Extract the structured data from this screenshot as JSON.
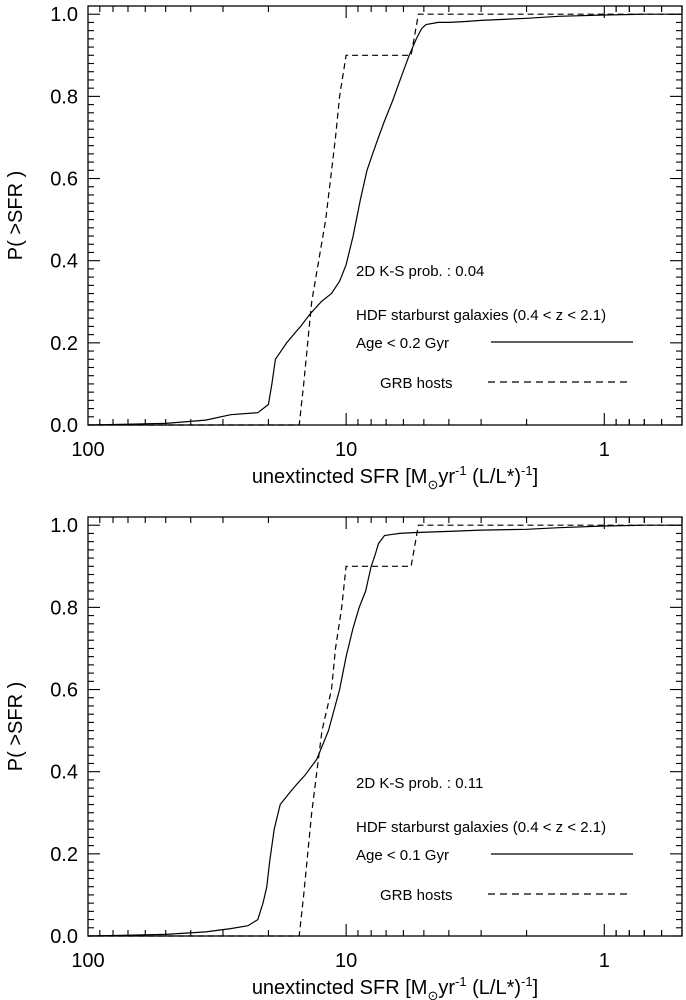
{
  "chart_data": [
    {
      "type": "line",
      "x_scale": "log",
      "x_reversed": true,
      "xlim": [
        100,
        0.5
      ],
      "ylim": [
        0,
        1.02
      ],
      "xlabel": {
        "base": "unextincted SFR [M",
        "sub": "⊙",
        "mid": "yr",
        "sup1": "-1",
        "tail": " (L/L*)",
        "sup2": "-1",
        "end": "]"
      },
      "ylabel": "P( >SFR )",
      "x_ticks": [
        {
          "value": 100,
          "label": "100"
        },
        {
          "value": 10,
          "label": "10"
        },
        {
          "value": 1,
          "label": "1"
        }
      ],
      "y_ticks": [
        {
          "value": 0,
          "label": "0.0"
        },
        {
          "value": 0.2,
          "label": "0.2"
        },
        {
          "value": 0.4,
          "label": "0.4"
        },
        {
          "value": 0.6,
          "label": "0.6"
        },
        {
          "value": 0.8,
          "label": "0.8"
        },
        {
          "value": 1.0,
          "label": "1.0"
        }
      ],
      "annotation": "2D K-S prob. : 0.04",
      "legend": [
        {
          "line1": "HDF starburst galaxies (0.4 < z < 2.1)",
          "line2": "Age < 0.2 Gyr",
          "style": "solid"
        },
        {
          "line1": "GRB hosts",
          "style": "dashed"
        }
      ],
      "series": [
        {
          "style": "solid",
          "x": [
            100,
            50,
            35,
            28,
            22,
            20,
            19.4,
            18.8,
            17,
            15.5,
            15,
            14.6,
            13.8,
            12.5,
            11.4,
            10.6,
            10,
            9.4,
            8.8,
            8.3,
            7.9,
            7.5,
            7.1,
            6.6,
            6.1,
            5.7,
            5.35,
            5.1,
            4.9,
            4.4,
            4,
            3.5,
            3,
            2,
            1.5,
            1,
            0.7,
            0.5
          ],
          "y": [
            0,
            0.004,
            0.012,
            0.025,
            0.03,
            0.05,
            0.1,
            0.16,
            0.2,
            0.23,
            0.24,
            0.25,
            0.27,
            0.3,
            0.32,
            0.35,
            0.39,
            0.46,
            0.55,
            0.62,
            0.66,
            0.7,
            0.74,
            0.79,
            0.85,
            0.9,
            0.94,
            0.965,
            0.975,
            0.98,
            0.98,
            0.982,
            0.985,
            0.99,
            0.995,
            0.998,
            1.0,
            1.0
          ]
        },
        {
          "style": "dashed",
          "x": [
            100,
            15.2,
            14.6,
            13.6,
            12,
            11,
            10.6,
            10,
            9,
            5.6,
            5.25,
            0.5
          ],
          "y": [
            0,
            0,
            0.1,
            0.3,
            0.5,
            0.7,
            0.8,
            0.9,
            0.9,
            0.9,
            1.0,
            1.0
          ]
        }
      ]
    },
    {
      "type": "line",
      "x_scale": "log",
      "x_reversed": true,
      "xlim": [
        100,
        0.5
      ],
      "ylim": [
        0,
        1.02
      ],
      "xlabel": {
        "base": "unextincted SFR [M",
        "sub": "⊙",
        "mid": "yr",
        "sup1": "-1",
        "tail": " (L/L*)",
        "sup2": "-1",
        "end": "]"
      },
      "ylabel": "P( >SFR )",
      "x_ticks": [
        {
          "value": 100,
          "label": "100"
        },
        {
          "value": 10,
          "label": "10"
        },
        {
          "value": 1,
          "label": "1"
        }
      ],
      "y_ticks": [
        {
          "value": 0,
          "label": "0.0"
        },
        {
          "value": 0.2,
          "label": "0.2"
        },
        {
          "value": 0.4,
          "label": "0.4"
        },
        {
          "value": 0.6,
          "label": "0.6"
        },
        {
          "value": 0.8,
          "label": "0.8"
        },
        {
          "value": 1.0,
          "label": "1.0"
        }
      ],
      "annotation": "2D K-S prob. : 0.11",
      "legend": [
        {
          "line1": "HDF starburst galaxies (0.4 < z < 2.1)",
          "line2": "Age < 0.1 Gyr",
          "style": "solid"
        },
        {
          "line1": "GRB hosts",
          "style": "dashed"
        }
      ],
      "series": [
        {
          "style": "solid",
          "x": [
            100,
            50,
            35,
            28,
            24,
            22,
            21,
            20.3,
            19.8,
            19,
            18,
            16.5,
            15.5,
            14.5,
            13,
            11.7,
            10.6,
            10,
            9.4,
            8.9,
            8.4,
            8.2,
            8,
            7.7,
            7.5,
            7.3,
            7.1,
            6.6,
            6.2,
            5.5,
            4,
            3,
            2,
            1.5,
            1,
            0.7,
            0.5
          ],
          "y": [
            0,
            0.004,
            0.01,
            0.018,
            0.025,
            0.04,
            0.08,
            0.12,
            0.18,
            0.26,
            0.32,
            0.35,
            0.37,
            0.39,
            0.43,
            0.5,
            0.6,
            0.68,
            0.75,
            0.8,
            0.84,
            0.87,
            0.9,
            0.93,
            0.955,
            0.965,
            0.975,
            0.978,
            0.98,
            0.982,
            0.985,
            0.988,
            0.99,
            0.994,
            0.998,
            1.0,
            1.0
          ]
        },
        {
          "style": "dashed",
          "x": [
            100,
            15.2,
            14.6,
            13.6,
            12.4,
            11.4,
            11,
            10.4,
            10,
            9,
            5.6,
            5.25,
            0.5
          ],
          "y": [
            0,
            0,
            0.1,
            0.3,
            0.5,
            0.6,
            0.7,
            0.8,
            0.9,
            0.9,
            0.9,
            1.0,
            1.0
          ]
        }
      ]
    }
  ]
}
